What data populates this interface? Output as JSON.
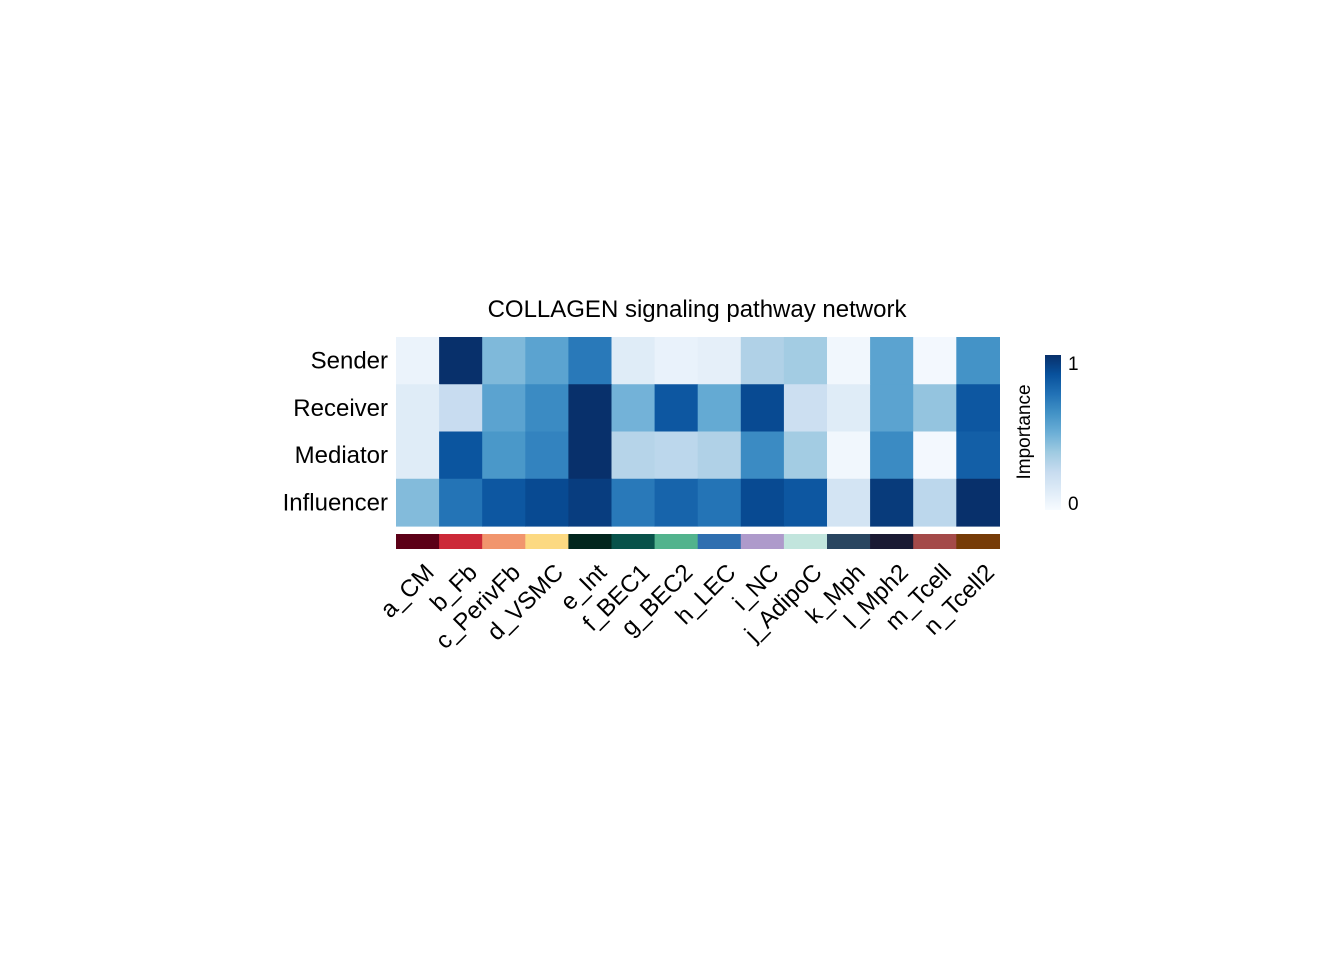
{
  "chart_data": {
    "type": "heatmap",
    "title": "COLLAGEN signaling pathway network",
    "rows": [
      "Sender",
      "Receiver",
      "Mediator",
      "Influencer"
    ],
    "columns": [
      "a_CM",
      "b_Fb",
      "c_PerivFb",
      "d_VSMC",
      "e_Int",
      "f_BEC1",
      "g_BEC2",
      "h_LEC",
      "i_NC",
      "j_AdipoC",
      "k_Mph",
      "l_Mph2",
      "m_Tcell",
      "n_Tcell2"
    ],
    "values": [
      [
        0.06,
        1.0,
        0.45,
        0.55,
        0.72,
        0.12,
        0.07,
        0.09,
        0.32,
        0.36,
        0.03,
        0.55,
        0.02,
        0.62
      ],
      [
        0.12,
        0.24,
        0.55,
        0.65,
        1.0,
        0.48,
        0.85,
        0.52,
        0.9,
        0.22,
        0.12,
        0.55,
        0.4,
        0.85
      ],
      [
        0.12,
        0.86,
        0.6,
        0.68,
        1.0,
        0.3,
        0.28,
        0.32,
        0.65,
        0.36,
        0.03,
        0.65,
        0.02,
        0.82
      ],
      [
        0.44,
        0.74,
        0.85,
        0.9,
        0.95,
        0.72,
        0.8,
        0.74,
        0.9,
        0.85,
        0.18,
        0.96,
        0.28,
        1.0
      ]
    ],
    "colorscale": [
      "#f7fbff",
      "#deebf7",
      "#c6dbef",
      "#9ecae1",
      "#6baed6",
      "#4292c6",
      "#2171b5",
      "#08519c",
      "#08306b"
    ],
    "vmin": 0,
    "vmax": 1,
    "colorbar": {
      "label": "Importance",
      "ticks": [
        "0",
        "1"
      ]
    },
    "group_colors": [
      "#5c0017",
      "#cc2938",
      "#f1956d",
      "#fcd982",
      "#02261e",
      "#08524a",
      "#52b38d",
      "#2f6fb0",
      "#ae9acb",
      "#c2e5dd",
      "#294560",
      "#1a1a33",
      "#a44a49",
      "#763b07"
    ]
  }
}
